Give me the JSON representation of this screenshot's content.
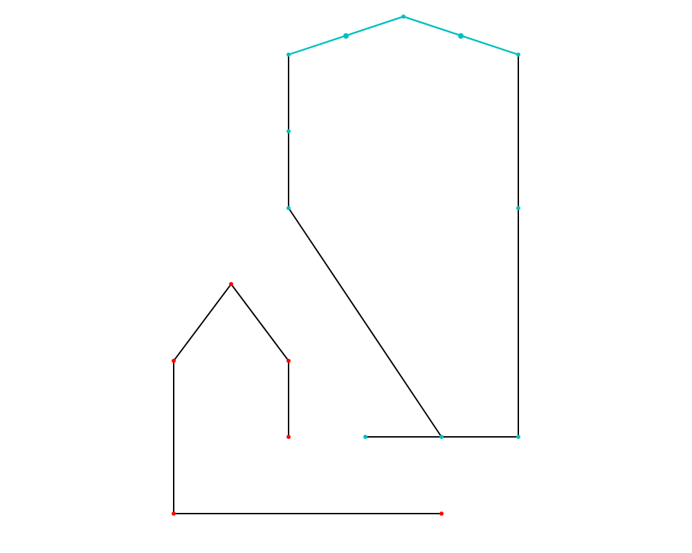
{
  "colors": {
    "background": "#ffffff",
    "line": "#000000",
    "accent_line": "#00bfbf",
    "red_node": "#ff0000",
    "cyan_node": "#00bfbf"
  },
  "figures": [
    {
      "name": "red-house-outline",
      "node_color": "red"
    },
    {
      "name": "cyan-tall-outline",
      "node_color": "cyan"
    }
  ]
}
